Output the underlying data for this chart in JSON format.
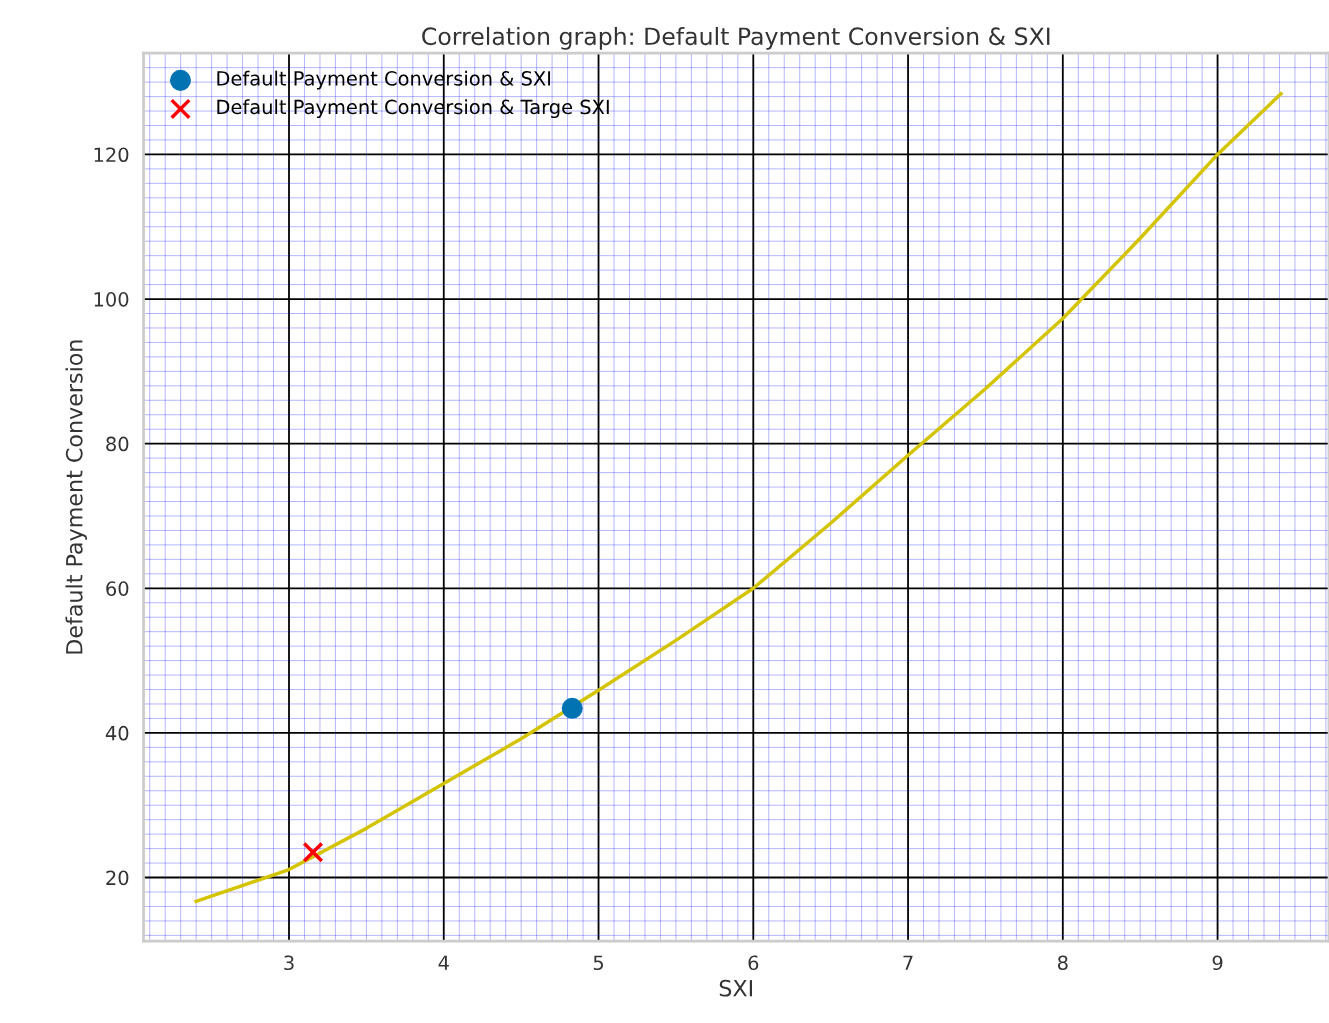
{
  "chart_data": {
    "type": "scatter",
    "title": "Correlation graph: Default Payment Conversion & SXI",
    "xlabel": "SXI",
    "ylabel": "Default Payment Conversion",
    "series": [
      {
        "name": "Default Payment Conversion & SXI",
        "marker": "circle",
        "color": "#0173b2",
        "x": [
          4.83
        ],
        "values": [
          43.4
        ]
      },
      {
        "name": "Default Payment Conversion & Targe SXI",
        "marker": "cross",
        "color": "#ff0000",
        "x": [
          3.155
        ],
        "values": [
          23.5
        ]
      },
      {
        "type": "line",
        "color": "#d4c400",
        "x": [
          2.4,
          3,
          3.5,
          4,
          4.5,
          5,
          5.5,
          6,
          6.5,
          7,
          7.5,
          8,
          8.5,
          9,
          9.41
        ],
        "values": [
          16.7,
          21.1,
          26.8,
          33.0,
          39.2,
          45.9,
          52.8,
          60.0,
          69.0,
          78.4,
          87.6,
          97.3,
          108.4,
          120.0,
          128.4
        ]
      }
    ],
    "xlim": [
      2.06,
      9.72
    ],
    "ylim": [
      11.2,
      134
    ],
    "xticks": [
      {
        "value": 2.1,
        "label": null
      },
      {
        "value": 2.2,
        "label": null
      },
      {
        "value": 2.3,
        "label": null
      },
      {
        "value": 2.4,
        "label": null
      },
      {
        "value": 2.5,
        "label": null
      },
      {
        "value": 2.6,
        "label": null
      },
      {
        "value": 2.7,
        "label": null
      },
      {
        "value": 2.8,
        "label": null
      },
      {
        "value": 2.9,
        "label": null
      },
      3,
      {
        "value": 3.1,
        "label": null
      },
      {
        "value": 3.2,
        "label": null
      },
      {
        "value": 3.3,
        "label": null
      },
      {
        "value": 3.4,
        "label": null
      },
      {
        "value": 3.5,
        "label": null
      },
      {
        "value": 3.6,
        "label": null
      },
      {
        "value": 3.7,
        "label": null
      },
      {
        "value": 3.8,
        "label": null
      },
      {
        "value": 3.9,
        "label": null
      },
      4,
      {
        "value": 4.1,
        "label": null
      },
      {
        "value": 4.2,
        "label": null
      },
      {
        "value": 4.3,
        "label": null
      },
      {
        "value": 4.4,
        "label": null
      },
      {
        "value": 4.5,
        "label": null
      },
      {
        "value": 4.6,
        "label": null
      },
      {
        "value": 4.7,
        "label": null
      },
      {
        "value": 4.8,
        "label": null
      },
      {
        "value": 4.9,
        "label": null
      },
      5,
      {
        "value": 5.1,
        "label": null
      },
      {
        "value": 5.2,
        "label": null
      },
      {
        "value": 5.3,
        "label": null
      },
      {
        "value": 5.4,
        "label": null
      },
      {
        "value": 5.5,
        "label": null
      },
      {
        "value": 5.6,
        "label": null
      },
      {
        "value": 5.7,
        "label": null
      },
      {
        "value": 5.8,
        "label": null
      },
      {
        "value": 5.9,
        "label": null
      },
      6,
      {
        "value": 6.1,
        "label": null
      },
      {
        "value": 6.2,
        "label": null
      },
      {
        "value": 6.3,
        "label": null
      },
      {
        "value": 6.4,
        "label": null
      },
      {
        "value": 6.5,
        "label": null
      },
      {
        "value": 6.6,
        "label": null
      },
      {
        "value": 6.7,
        "label": null
      },
      {
        "value": 6.8,
        "label": null
      },
      {
        "value": 6.9,
        "label": null
      },
      7,
      {
        "value": 7.1,
        "label": null
      },
      {
        "value": 7.2,
        "label": null
      },
      {
        "value": 7.3,
        "label": null
      },
      {
        "value": 7.4,
        "label": null
      },
      {
        "value": 7.5,
        "label": null
      },
      {
        "value": 7.6,
        "label": null
      },
      {
        "value": 7.7,
        "label": null
      },
      {
        "value": 7.8,
        "label": null
      },
      {
        "value": 7.9,
        "label": null
      },
      8,
      {
        "value": 8.1,
        "label": null
      },
      {
        "value": 8.2,
        "label": null
      },
      {
        "value": 8.3,
        "label": null
      },
      {
        "value": 8.4,
        "label": null
      },
      {
        "value": 8.5,
        "label": null
      },
      {
        "value": 8.6,
        "label": null
      },
      {
        "value": 8.7,
        "label": null
      },
      {
        "value": 8.8,
        "label": null
      },
      {
        "value": 8.9,
        "label": null
      },
      9,
      {
        "value": 9.1,
        "label": null
      },
      {
        "value": 9.2,
        "label": null
      },
      {
        "value": 9.3,
        "label": null
      },
      {
        "value": 9.4,
        "label": null
      },
      {
        "value": 9.5,
        "label": null
      },
      {
        "value": 9.6,
        "label": null
      },
      {
        "value": 9.7,
        "label": null
      }
    ],
    "yticks": [
      {
        "value": 12,
        "label": null
      },
      {
        "value": 14,
        "label": null
      },
      {
        "value": 16,
        "label": null
      },
      {
        "value": 18,
        "label": null
      },
      20,
      {
        "value": 22,
        "label": null
      },
      {
        "value": 24,
        "label": null
      },
      {
        "value": 26,
        "label": null
      },
      {
        "value": 28,
        "label": null
      },
      {
        "value": 30,
        "label": null
      },
      {
        "value": 32,
        "label": null
      },
      {
        "value": 34,
        "label": null
      },
      {
        "value": 36,
        "label": null
      },
      {
        "value": 38,
        "label": null
      },
      40,
      {
        "value": 42,
        "label": null
      },
      {
        "value": 44,
        "label": null
      },
      {
        "value": 46,
        "label": null
      },
      {
        "value": 48,
        "label": null
      },
      {
        "value": 50,
        "label": null
      },
      {
        "value": 52,
        "label": null
      },
      {
        "value": 54,
        "label": null
      },
      {
        "value": 56,
        "label": null
      },
      {
        "value": 58,
        "label": null
      },
      60,
      {
        "value": 62,
        "label": null
      },
      {
        "value": 64,
        "label": null
      },
      {
        "value": 66,
        "label": null
      },
      {
        "value": 68,
        "label": null
      },
      {
        "value": 70,
        "label": null
      },
      {
        "value": 72,
        "label": null
      },
      {
        "value": 74,
        "label": null
      },
      {
        "value": 76,
        "label": null
      },
      {
        "value": 78,
        "label": null
      },
      80,
      {
        "value": 82,
        "label": null
      },
      {
        "value": 84,
        "label": null
      },
      {
        "value": 86,
        "label": null
      },
      {
        "value": 88,
        "label": null
      },
      {
        "value": 90,
        "label": null
      },
      {
        "value": 92,
        "label": null
      },
      {
        "value": 94,
        "label": null
      },
      {
        "value": 96,
        "label": null
      },
      {
        "value": 98,
        "label": null
      },
      100,
      {
        "value": 102,
        "label": null
      },
      {
        "value": 104,
        "label": null
      },
      {
        "value": 106,
        "label": null
      },
      {
        "value": 108,
        "label": null
      },
      {
        "value": 110,
        "label": null
      },
      {
        "value": 112,
        "label": null
      },
      {
        "value": 114,
        "label": null
      },
      {
        "value": 116,
        "label": null
      },
      {
        "value": 118,
        "label": null
      },
      120,
      {
        "value": 122,
        "label": null
      },
      {
        "value": 124,
        "label": null
      },
      {
        "value": 126,
        "label": null
      },
      {
        "value": 128,
        "label": null
      },
      {
        "value": 130,
        "label": null
      },
      {
        "value": 132,
        "label": null
      }
    ],
    "grid": true,
    "legend": "top left"
  }
}
